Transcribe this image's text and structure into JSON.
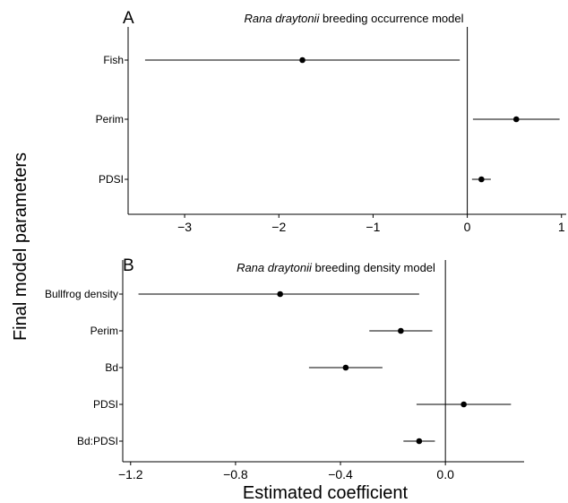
{
  "figure": {
    "ylabel": "Final model parameters",
    "xlabel": "Estimated coefficient"
  },
  "chart_data": [
    {
      "type": "scatter",
      "panel_letter": "A",
      "title_italic": "Rana draytonii",
      "title_rest": " breeding occurrence model",
      "categories": [
        "Fish",
        "Perim",
        "PDSI"
      ],
      "estimates": [
        -1.75,
        0.52,
        0.15
      ],
      "ci_low": [
        -3.42,
        0.06,
        0.05
      ],
      "ci_high": [
        -0.08,
        0.98,
        0.25
      ],
      "xlim": [
        -3.6,
        1.05
      ],
      "xticks": [
        -3,
        -2,
        -1,
        0,
        1
      ],
      "xtick_labels": [
        "−3",
        "−2",
        "−1",
        "0",
        "1"
      ],
      "zero_line": 0,
      "grid": false
    },
    {
      "type": "scatter",
      "panel_letter": "B",
      "title_italic": "Rana draytonii",
      "title_rest": " breeding density model",
      "categories": [
        "Bullfrog density",
        "Perim",
        "Bd",
        "PDSI",
        "Bd:PDSI"
      ],
      "estimates": [
        -0.63,
        -0.17,
        -0.38,
        0.07,
        -0.1
      ],
      "ci_low": [
        -1.17,
        -0.29,
        -0.52,
        -0.11,
        -0.16
      ],
      "ci_high": [
        -0.1,
        -0.05,
        -0.24,
        0.25,
        -0.04
      ],
      "xlim": [
        -1.23,
        0.3
      ],
      "xticks": [
        -1.2,
        -0.8,
        -0.4,
        0.0
      ],
      "xtick_labels": [
        "−1.2",
        "−0.8",
        "−0.4",
        "0.0"
      ],
      "zero_line": 0,
      "grid": false
    }
  ]
}
